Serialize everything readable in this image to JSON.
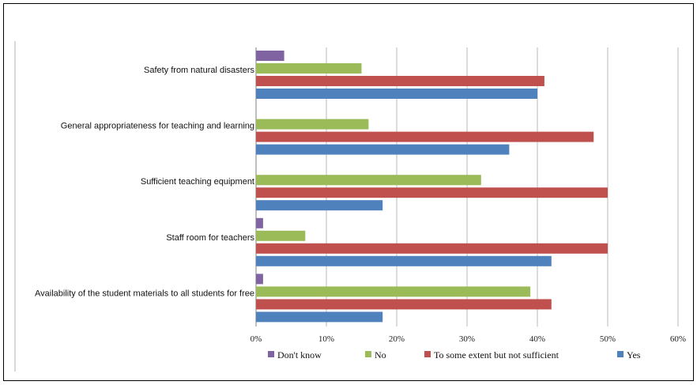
{
  "chart_data": {
    "type": "bar",
    "orientation": "horizontal",
    "categories": [
      "Safety from natural disasters",
      "General appropriateness for teaching and learning",
      "Sufficient teaching equipment",
      "Staff room for teachers",
      "Availability of the student materials to all students for free"
    ],
    "series": [
      {
        "name": "Don't know",
        "color": "#8064a2",
        "values": [
          4,
          0,
          0,
          1,
          1
        ]
      },
      {
        "name": "No",
        "color": "#9bbb59",
        "values": [
          15,
          16,
          32,
          7,
          39
        ]
      },
      {
        "name": "To some extent but not sufficient",
        "color": "#c0504d",
        "values": [
          41,
          48,
          50,
          50,
          42
        ]
      },
      {
        "name": "Yes",
        "color": "#4f81bd",
        "values": [
          40,
          36,
          18,
          42,
          18
        ]
      }
    ],
    "xticks": [
      "0%",
      "10%",
      "20%",
      "30%",
      "40%",
      "50%",
      "60%"
    ],
    "xlim": [
      0,
      60
    ],
    "grid": true,
    "legend_position": "bottom"
  }
}
